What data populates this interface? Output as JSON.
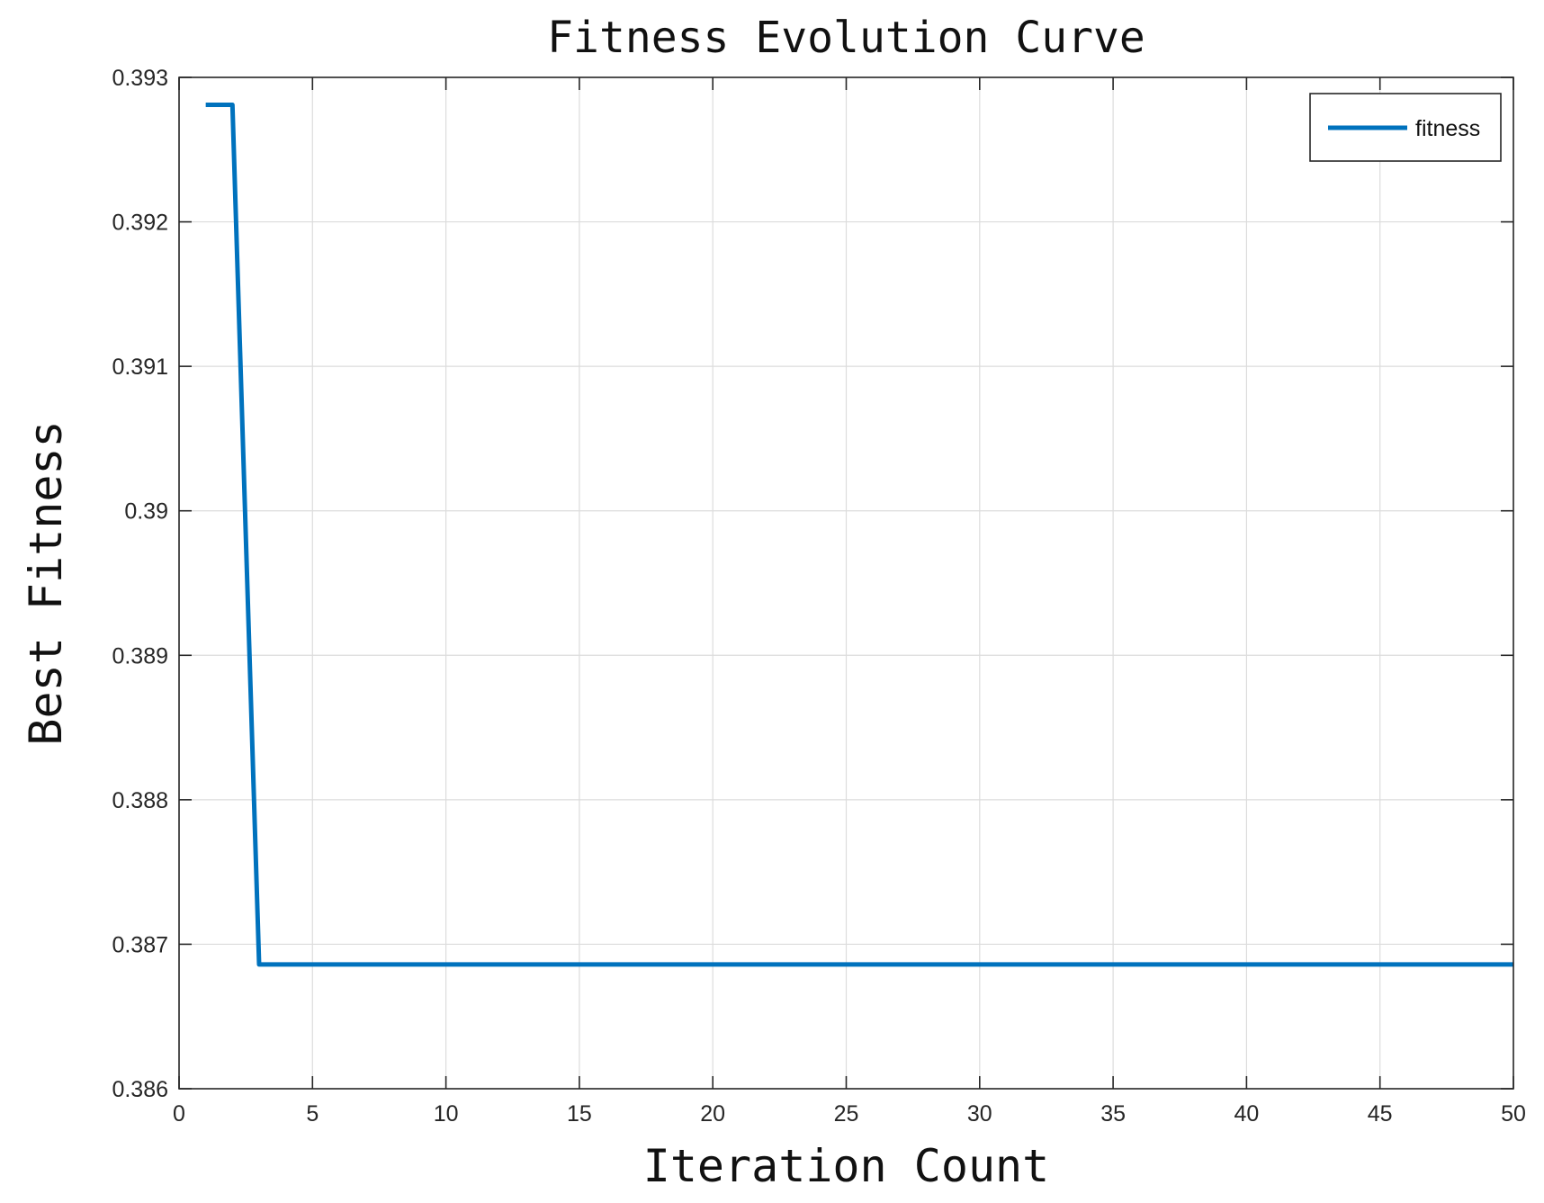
{
  "chart_data": {
    "type": "line",
    "title": "Fitness Evolution Curve",
    "xlabel": "Iteration Count",
    "ylabel": "Best Fitness",
    "xlim": [
      0,
      50
    ],
    "ylim": [
      0.386,
      0.393
    ],
    "x_ticks": [
      0,
      5,
      10,
      15,
      20,
      25,
      30,
      35,
      40,
      45,
      50
    ],
    "x_tick_labels": [
      "0",
      "5",
      "10",
      "15",
      "20",
      "25",
      "30",
      "35",
      "40",
      "45",
      "50"
    ],
    "y_ticks": [
      0.386,
      0.387,
      0.388,
      0.389,
      0.39,
      0.391,
      0.392,
      0.393
    ],
    "y_tick_labels": [
      "0.386",
      "0.387",
      "0.388",
      "0.389",
      "0.39",
      "0.391",
      "0.392",
      "0.393"
    ],
    "grid": true,
    "legend_position": "top-right",
    "series": [
      {
        "name": "fitness",
        "color": "#0072BD",
        "x": [
          1,
          2,
          3,
          4,
          5,
          6,
          7,
          8,
          9,
          10,
          11,
          12,
          13,
          14,
          15,
          16,
          17,
          18,
          19,
          20,
          21,
          22,
          23,
          24,
          25,
          26,
          27,
          28,
          29,
          30,
          31,
          32,
          33,
          34,
          35,
          36,
          37,
          38,
          39,
          40,
          41,
          42,
          43,
          44,
          45,
          46,
          47,
          48,
          49,
          50
        ],
        "values": [
          0.39281,
          0.39281,
          0.38686,
          0.38686,
          0.38686,
          0.38686,
          0.38686,
          0.38686,
          0.38686,
          0.38686,
          0.38686,
          0.38686,
          0.38686,
          0.38686,
          0.38686,
          0.38686,
          0.38686,
          0.38686,
          0.38686,
          0.38686,
          0.38686,
          0.38686,
          0.38686,
          0.38686,
          0.38686,
          0.38686,
          0.38686,
          0.38686,
          0.38686,
          0.38686,
          0.38686,
          0.38686,
          0.38686,
          0.38686,
          0.38686,
          0.38686,
          0.38686,
          0.38686,
          0.38686,
          0.38686,
          0.38686,
          0.38686,
          0.38686,
          0.38686,
          0.38686,
          0.38686,
          0.38686,
          0.38686,
          0.38686,
          0.38686
        ]
      }
    ]
  }
}
